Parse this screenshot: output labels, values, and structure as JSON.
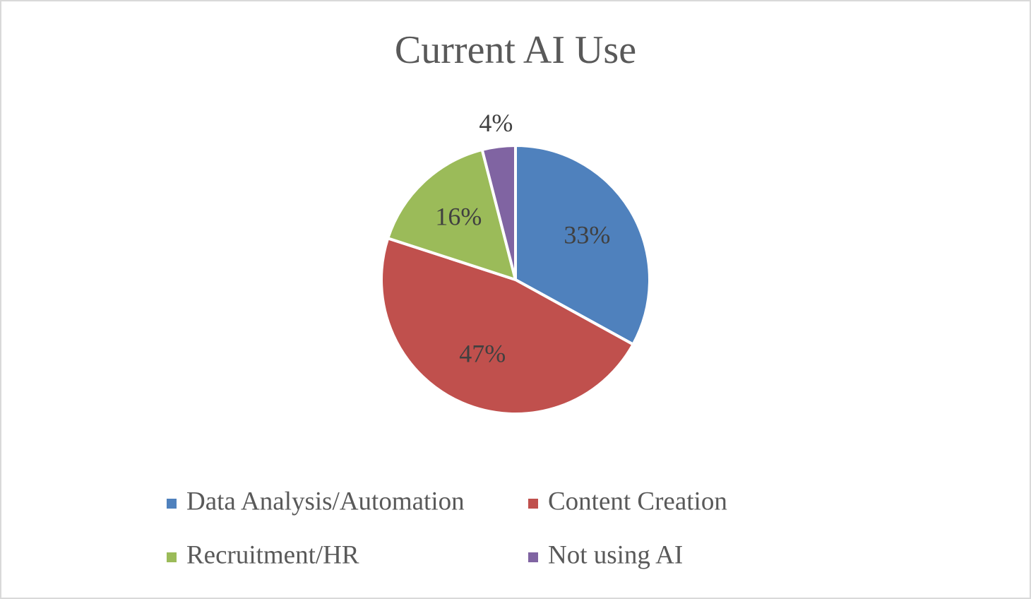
{
  "chart_data": {
    "type": "pie",
    "title": "Current AI Use",
    "categories": [
      "Data Analysis/Automation",
      "Content Creation",
      "Recruitment/HR",
      "Not using AI"
    ],
    "values": [
      33,
      47,
      16,
      4
    ],
    "value_labels": [
      "33%",
      "47%",
      "16%",
      "4%"
    ],
    "colors": [
      "#4f81bd",
      "#c0504d",
      "#9bbb59",
      "#8064a2"
    ],
    "legend": "bottom"
  }
}
